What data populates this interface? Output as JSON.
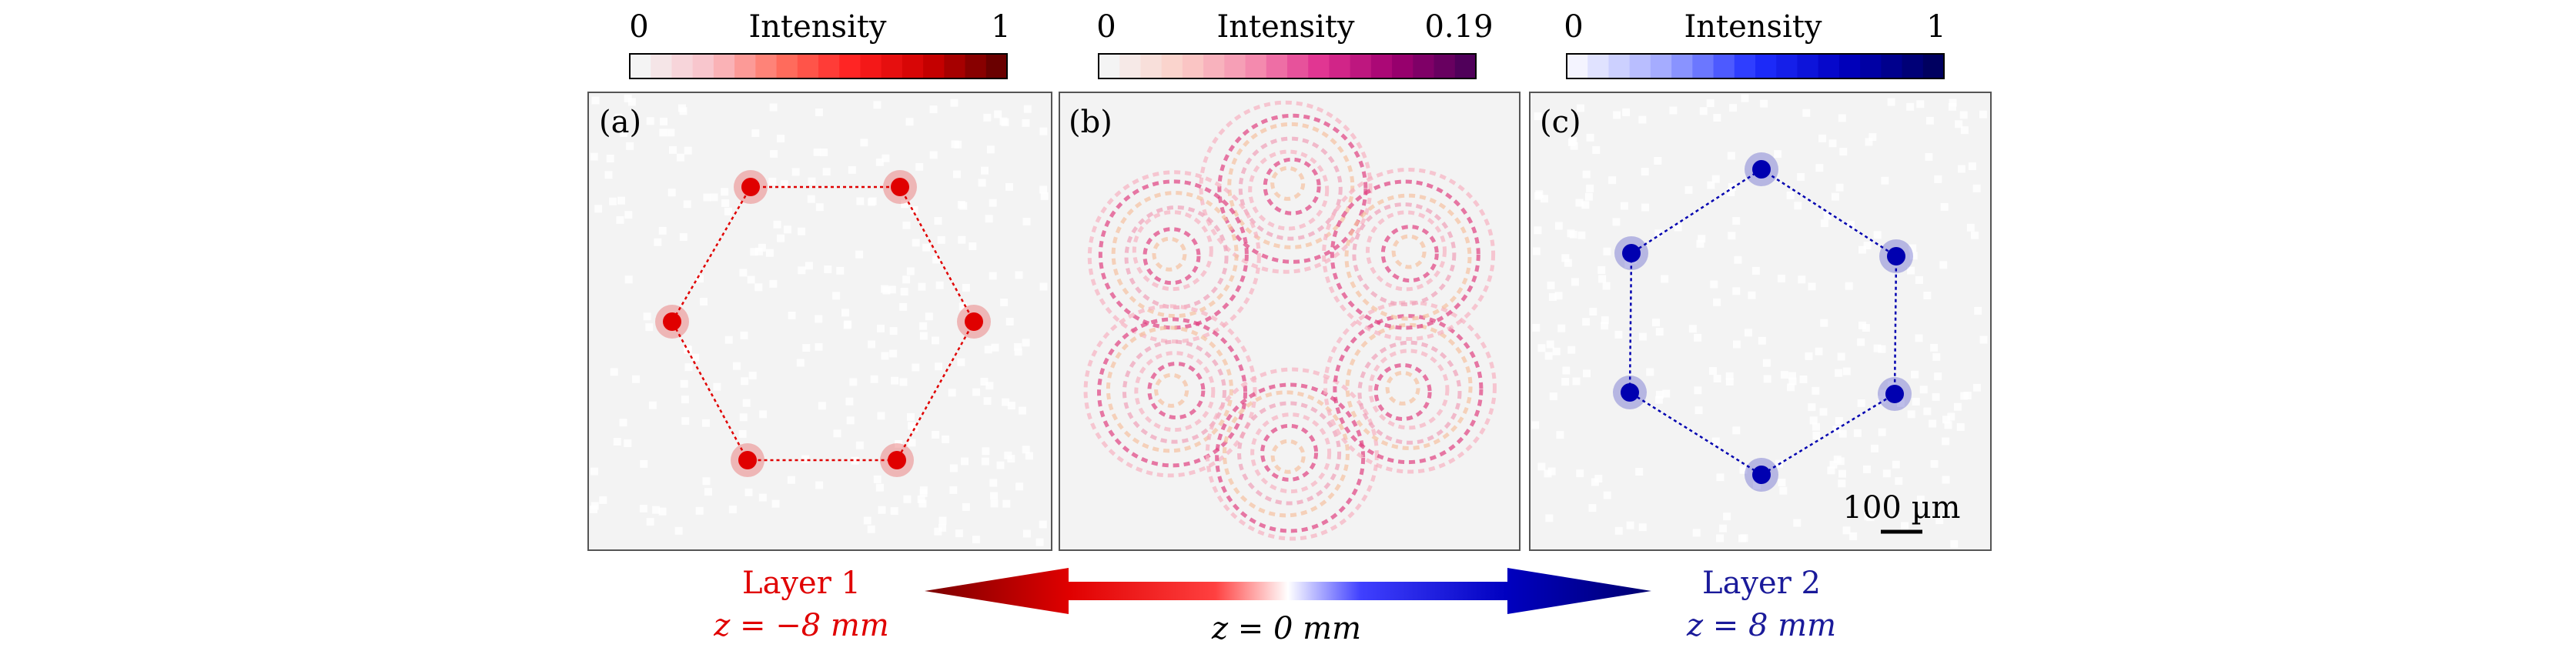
{
  "colorbars": [
    {
      "min": "0",
      "max": "1",
      "title": "Intensity",
      "colors": [
        "#f4f4f4",
        "#f9c0c8",
        "#ff7060",
        "#ff2020",
        "#d00000",
        "#6a0000"
      ]
    },
    {
      "min": "0",
      "max": "0.19",
      "title": "Intensity",
      "colors": [
        "#f4f4f4",
        "#fbd0c8",
        "#f590b0",
        "#e03090",
        "#a00070",
        "#50005a"
      ]
    },
    {
      "min": "0",
      "max": "1",
      "title": "Intensity",
      "colors": [
        "#f4f4ff",
        "#a0a8ff",
        "#2030ff",
        "#0000c0",
        "#000060"
      ]
    }
  ],
  "panels": [
    {
      "label": "(a)",
      "spot_color": "#e00000",
      "line_color": "#e00000"
    },
    {
      "label": "(b)"
    },
    {
      "label": "(c)",
      "spot_color": "#0000b0",
      "line_color": "#0000b0"
    }
  ],
  "scale_bar": "100 µm",
  "bottom": {
    "layer1": {
      "title": "Layer 1",
      "z": "z = −8 mm",
      "color": "#e00000"
    },
    "center": {
      "z": "z = 0 mm"
    },
    "layer2": {
      "title": "Layer 2",
      "z": "z = 8 mm",
      "color": "#1a1a9a"
    }
  }
}
